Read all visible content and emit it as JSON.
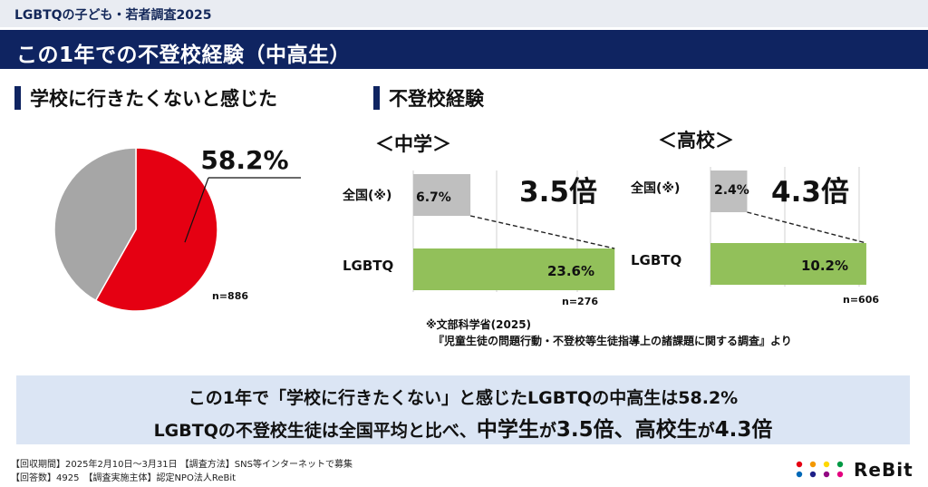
{
  "header": {
    "survey_name": "LGBTQの子ども・若者調査2025",
    "title": "この1年での不登校経験（中高生）"
  },
  "sections": {
    "left_heading": "学校に行きたくないと感じた",
    "right_heading": "不登校経験"
  },
  "chart_data": [
    {
      "type": "pie",
      "labels": [
        "学校に行きたくないと感じた",
        ""
      ],
      "values": [
        58.2,
        41.8
      ],
      "colors": [
        "#e50012",
        "#a6a6a6"
      ],
      "data_label": "58.2%",
      "note": "n=886"
    },
    {
      "type": "bar",
      "orientation": "horizontal",
      "title": "＜中学＞",
      "categories": [
        "全国(※)",
        "LGBTQ"
      ],
      "values": [
        6.7,
        23.6
      ],
      "value_labels": [
        "6.7%",
        "23.6%"
      ],
      "colors": [
        "#bfbfbf",
        "#92c05a"
      ],
      "ratio_label": "3.5倍",
      "note": "n=276",
      "xlim": [
        0,
        24
      ]
    },
    {
      "type": "bar",
      "orientation": "horizontal",
      "title": "＜高校＞",
      "categories": [
        "全国(※)",
        "LGBTQ"
      ],
      "values": [
        2.4,
        10.2
      ],
      "value_labels": [
        "2.4%",
        "10.2%"
      ],
      "colors": [
        "#bfbfbf",
        "#92c05a"
      ],
      "ratio_label": "4.3倍",
      "note": "n=606",
      "xlim": [
        0,
        10.5
      ]
    }
  ],
  "source_note": {
    "line1": "※文部科学省(2025)",
    "line2": "『児童生徒の問題行動・不登校等生徒指導上の諸課題に関する調査』より"
  },
  "summary": {
    "line1": "この1年で「学校に行きたくない」と感じたLGBTQの中高生は58.2%",
    "line2_part1": "LGBTQの不登校生徒は全国平均と比べ、",
    "line2_big1": "中学生",
    "line2_part2": "が",
    "line2_big2": "3.5倍、高校生",
    "line2_part3": "が",
    "line2_big3": "4.3倍"
  },
  "footer": {
    "line1": "【回収期間】2025年2月10日～3月31日 【調査方法】SNS等インターネットで募集",
    "line2": "【回答数】4925　【調査実施主体】認定NPO法人ReBit"
  },
  "logo": {
    "text": "ReBit",
    "dot_colors": [
      "#e50012",
      "#f39800",
      "#ffd900",
      "#009944",
      "#0068b7",
      "#1d2088",
      "#920783",
      "#e4007f"
    ]
  }
}
